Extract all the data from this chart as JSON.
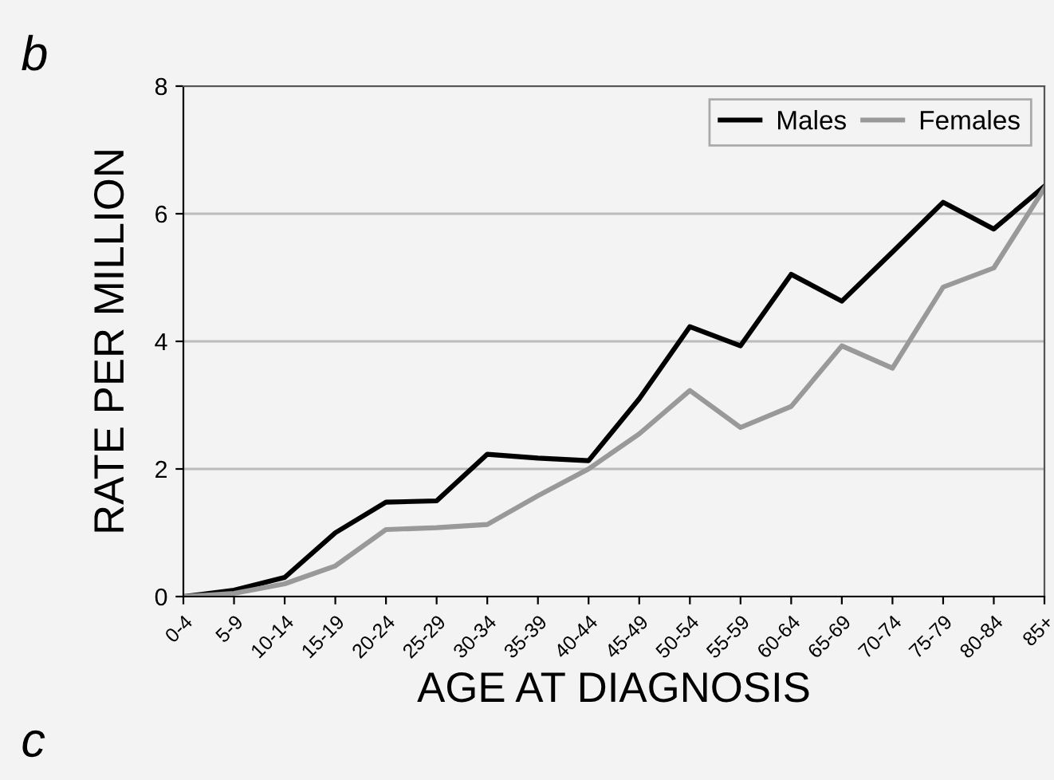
{
  "chart_data": {
    "type": "line",
    "xlabel": "AGE AT DIAGNOSIS",
    "ylabel": "RATE PER MILLION",
    "annotations": [
      "b",
      "c"
    ],
    "categories": [
      "0-4",
      "5-9",
      "10-14",
      "15-19",
      "20-24",
      "25-29",
      "30-34",
      "35-39",
      "40-44",
      "45-49",
      "50-54",
      "55-59",
      "60-64",
      "65-69",
      "70-74",
      "75-79",
      "80-84",
      "85+"
    ],
    "series": [
      {
        "name": "Males",
        "color": "#000000",
        "values": [
          0,
          0.1,
          0.3,
          1.0,
          1.48,
          1.5,
          2.23,
          2.17,
          2.13,
          3.1,
          4.23,
          3.93,
          5.05,
          4.63,
          5.4,
          6.18,
          5.76,
          6.43
        ]
      },
      {
        "name": "Females",
        "color": "#999999",
        "values": [
          0,
          0.05,
          0.2,
          0.48,
          1.05,
          1.08,
          1.13,
          1.58,
          2.0,
          2.55,
          3.23,
          2.65,
          2.98,
          3.93,
          3.58,
          4.85,
          5.15,
          6.4
        ]
      }
    ],
    "ylim": [
      0,
      8
    ],
    "yticks": [
      0,
      2,
      4,
      6,
      8
    ],
    "grid": "y",
    "legend": "top right",
    "marker": "none",
    "line_style": "solid"
  }
}
